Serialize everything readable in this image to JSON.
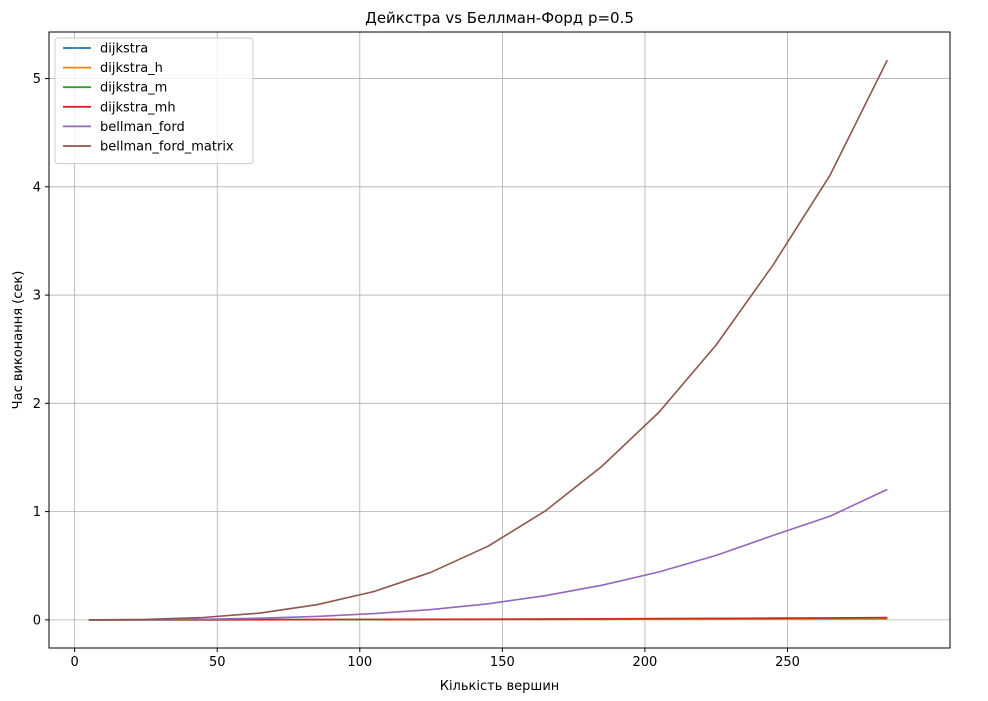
{
  "chart_data": {
    "type": "line",
    "title": "Дейкстра vs Беллман-Форд p=0.5",
    "xlabel": "Кількість вершин",
    "ylabel": "Час виконання (сек)",
    "xlim": [
      -9,
      307
    ],
    "ylim": [
      -0.26,
      5.43
    ],
    "xticks": [
      0,
      50,
      100,
      150,
      200,
      250
    ],
    "yticks": [
      0,
      1,
      2,
      3,
      4,
      5
    ],
    "grid": true,
    "legend_position": "top-left",
    "x": [
      5,
      25,
      45,
      65,
      85,
      105,
      125,
      145,
      165,
      185,
      205,
      225,
      245,
      265,
      285
    ],
    "series": [
      {
        "name": "dijkstra",
        "color": "#1f77b4",
        "values": [
          0.0001,
          0.0003,
          0.0006,
          0.001,
          0.0015,
          0.002,
          0.0027,
          0.0035,
          0.0043,
          0.0053,
          0.0063,
          0.0075,
          0.0087,
          0.01,
          0.0115
        ]
      },
      {
        "name": "dijkstra_h",
        "color": "#ff7f0e",
        "values": [
          0.0001,
          0.0003,
          0.0006,
          0.0009,
          0.0013,
          0.0018,
          0.0024,
          0.003,
          0.0037,
          0.0045,
          0.0053,
          0.0062,
          0.0072,
          0.0082,
          0.0093
        ]
      },
      {
        "name": "dijkstra_m",
        "color": "#2ca02c",
        "values": [
          0.0001,
          0.0004,
          0.0008,
          0.0014,
          0.0021,
          0.003,
          0.004,
          0.0052,
          0.0065,
          0.008,
          0.0096,
          0.0113,
          0.0132,
          0.0152,
          0.0174
        ]
      },
      {
        "name": "dijkstra_mh",
        "color": "#d62728",
        "values": [
          0.0001,
          0.0005,
          0.001,
          0.0017,
          0.0026,
          0.0037,
          0.0049,
          0.0063,
          0.0079,
          0.0097,
          0.0116,
          0.0137,
          0.016,
          0.0184,
          0.021
        ]
      },
      {
        "name": "bellman_ford",
        "color": "#9467bd",
        "values": [
          0.0,
          0.001,
          0.005,
          0.015,
          0.032,
          0.058,
          0.095,
          0.148,
          0.223,
          0.32,
          0.443,
          0.595,
          0.78,
          0.958,
          1.205
        ]
      },
      {
        "name": "bellman_ford_matrix",
        "color": "#8c564b",
        "values": [
          0.0,
          0.004,
          0.022,
          0.062,
          0.14,
          0.262,
          0.44,
          0.68,
          1.005,
          1.42,
          1.92,
          2.54,
          3.28,
          4.11,
          5.17
        ]
      }
    ]
  }
}
